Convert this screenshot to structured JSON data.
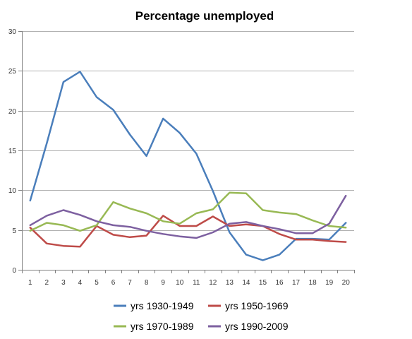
{
  "chart_data": {
    "type": "line",
    "title": "Percentage unemployed",
    "xlabel": "",
    "ylabel": "",
    "x": [
      1,
      2,
      3,
      4,
      5,
      6,
      7,
      8,
      9,
      10,
      11,
      12,
      13,
      14,
      15,
      16,
      17,
      18,
      19,
      20
    ],
    "ylim": [
      0,
      30
    ],
    "yticks": [
      0,
      5,
      10,
      15,
      20,
      25,
      30
    ],
    "grid": true,
    "legend_position": "bottom",
    "series": [
      {
        "name": "yrs 1930-1949",
        "color": "#4a7ebb",
        "values": [
          8.7,
          15.9,
          23.6,
          24.9,
          21.7,
          20.1,
          17.0,
          14.3,
          19.0,
          17.2,
          14.6,
          9.9,
          4.7,
          1.9,
          1.2,
          1.9,
          3.9,
          3.9,
          3.8,
          5.9
        ]
      },
      {
        "name": "yrs 1950-1969",
        "color": "#be4b48",
        "values": [
          5.3,
          3.3,
          3.0,
          2.9,
          5.5,
          4.4,
          4.1,
          4.3,
          6.8,
          5.5,
          5.5,
          6.7,
          5.5,
          5.7,
          5.5,
          4.5,
          3.8,
          3.8,
          3.6,
          3.5
        ]
      },
      {
        "name": "yrs 1970-1989",
        "color": "#98b954",
        "values": [
          4.9,
          5.9,
          5.6,
          4.9,
          5.6,
          8.5,
          7.7,
          7.1,
          6.1,
          5.8,
          7.1,
          7.6,
          9.7,
          9.6,
          7.5,
          7.2,
          7.0,
          6.2,
          5.5,
          5.3
        ]
      },
      {
        "name": "yrs 1990-2009",
        "color": "#7d60a0",
        "values": [
          5.6,
          6.8,
          7.5,
          6.9,
          6.1,
          5.6,
          5.4,
          4.9,
          4.5,
          4.2,
          4.0,
          4.7,
          5.8,
          6.0,
          5.5,
          5.1,
          4.6,
          4.6,
          5.8,
          9.3
        ]
      }
    ]
  }
}
